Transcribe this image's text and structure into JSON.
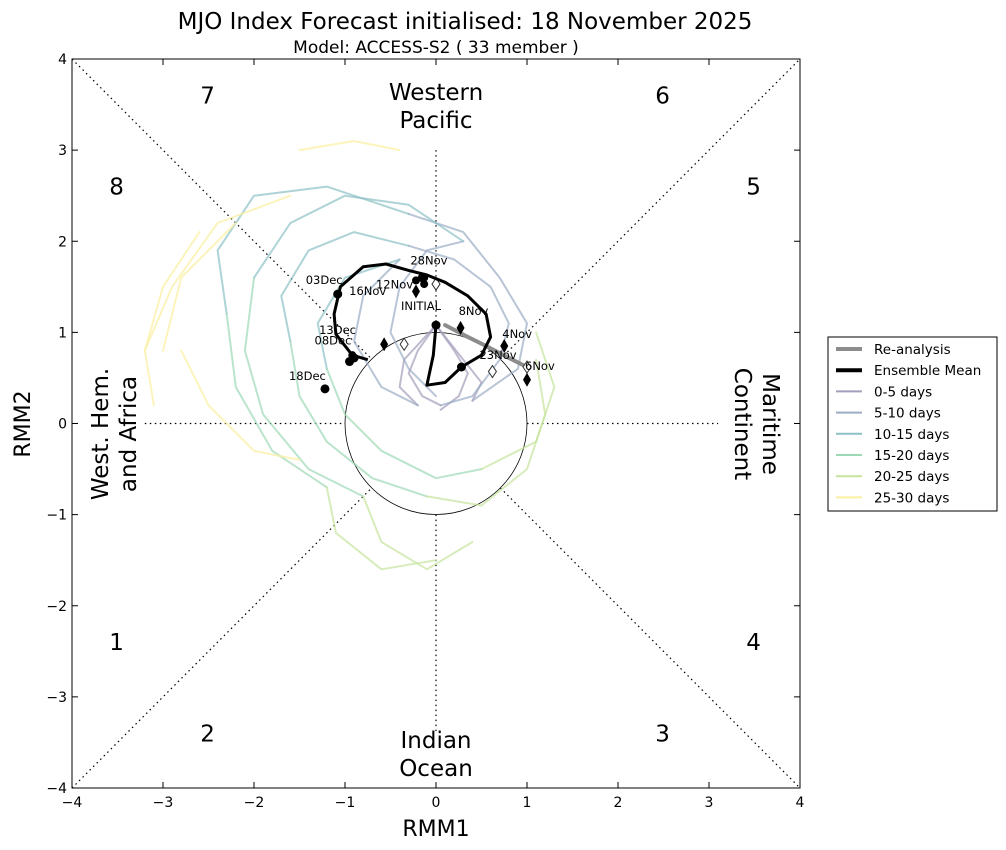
{
  "chart_data": {
    "type": "line",
    "title": "MJO Index Forecast initialised:  18  November 2025",
    "subtitle": "Model: ACCESS-S2 ( 33 member )",
    "xlabel": "RMM1",
    "ylabel": "RMM2",
    "xlim": [
      -4,
      4
    ],
    "ylim": [
      -4,
      4
    ],
    "xticks": [
      -4,
      -3,
      -2,
      -1,
      0,
      1,
      2,
      3,
      4
    ],
    "yticks": [
      -4,
      -3,
      -2,
      -1,
      0,
      1,
      2,
      3,
      4
    ],
    "xtick_labels": [
      "−4",
      "−3",
      "−2",
      "−1",
      "0",
      "1",
      "2",
      "3",
      "4"
    ],
    "ytick_labels": [
      "−4",
      "−3",
      "−2",
      "−1",
      "0",
      "1",
      "2",
      "3",
      "4"
    ],
    "unit_circle_radius": 1,
    "phase_numbers": [
      {
        "label": "1",
        "x": -3.4,
        "y": -2.4
      },
      {
        "label": "2",
        "x": -2.4,
        "y": -3.4
      },
      {
        "label": "3",
        "x": 2.6,
        "y": -3.4
      },
      {
        "label": "4",
        "x": 3.6,
        "y": -2.4
      },
      {
        "label": "5",
        "x": 3.6,
        "y": 2.6
      },
      {
        "label": "6",
        "x": 2.6,
        "y": 3.6
      },
      {
        "label": "7",
        "x": -2.4,
        "y": 3.6
      },
      {
        "label": "8",
        "x": -3.4,
        "y": 2.6
      }
    ],
    "region_labels": {
      "top": [
        "Western",
        "Pacific"
      ],
      "bottom": [
        "Indian",
        "Ocean"
      ],
      "left": [
        "West. Hem.",
        "and Africa"
      ],
      "right": [
        "Maritime",
        "Continent"
      ]
    },
    "legend": {
      "position": "outside-right",
      "entries": [
        {
          "label": "Re-analysis",
          "color": "#8c8c8c",
          "width": 4
        },
        {
          "label": "Ensemble Mean",
          "color": "#000000",
          "width": 4
        },
        {
          "label": "0-5 days",
          "color": "#a59dbb",
          "width": 2
        },
        {
          "label": "5-10 days",
          "color": "#9aadc4",
          "width": 2
        },
        {
          "label": "10-15 days",
          "color": "#8cc1c6",
          "width": 2
        },
        {
          "label": "15-20 days",
          "color": "#9ed9b6",
          "width": 2
        },
        {
          "label": "20-25 days",
          "color": "#c6e49c",
          "width": 2
        },
        {
          "label": "25-30 days",
          "color": "#fbf0a0",
          "width": 2
        }
      ]
    },
    "reanalysis": {
      "color": "#8c8c8c",
      "points": [
        {
          "x": 1.0,
          "y": 0.62
        },
        {
          "x": 0.8,
          "y": 0.72
        },
        {
          "x": 0.55,
          "y": 0.85
        },
        {
          "x": 0.35,
          "y": 0.95
        },
        {
          "x": 0.1,
          "y": 1.08
        }
      ],
      "markers": [
        {
          "x": 1.0,
          "y": 0.62,
          "label": "6Nov"
        },
        {
          "x": 0.62,
          "y": 0.57,
          "label": ""
        },
        {
          "x": -0.35,
          "y": 0.87,
          "label": ""
        },
        {
          "x": 0.0,
          "y": 1.53,
          "label": ""
        }
      ]
    },
    "ensemble_mean": {
      "color": "#000000",
      "points": [
        {
          "x": 0.0,
          "y": 1.08
        },
        {
          "x": -0.03,
          "y": 0.75
        },
        {
          "x": -0.1,
          "y": 0.42
        },
        {
          "x": 0.1,
          "y": 0.45
        },
        {
          "x": 0.28,
          "y": 0.62
        },
        {
          "x": 0.5,
          "y": 0.75
        },
        {
          "x": 0.6,
          "y": 0.95
        },
        {
          "x": 0.55,
          "y": 1.2
        },
        {
          "x": 0.35,
          "y": 1.4
        },
        {
          "x": 0.1,
          "y": 1.55
        },
        {
          "x": -0.1,
          "y": 1.63
        },
        {
          "x": -0.3,
          "y": 1.68
        },
        {
          "x": -0.55,
          "y": 1.75
        },
        {
          "x": -0.8,
          "y": 1.72
        },
        {
          "x": -1.05,
          "y": 1.5
        },
        {
          "x": -1.12,
          "y": 1.2
        },
        {
          "x": -1.1,
          "y": 0.98
        },
        {
          "x": -0.92,
          "y": 0.75
        },
        {
          "x": -0.75,
          "y": 0.7
        }
      ]
    },
    "date_markers": [
      {
        "label": "INITIAL",
        "x": 0.0,
        "y": 1.08,
        "shape": "circle"
      },
      {
        "label": "23Nov",
        "x": 0.28,
        "y": 0.62,
        "shape": "circle"
      },
      {
        "label": "28Nov",
        "x": -0.15,
        "y": 1.6,
        "shape": "circle"
      },
      {
        "label": "03Dec",
        "x": -1.08,
        "y": 1.42,
        "shape": "circle"
      },
      {
        "label": "08Dec",
        "x": -0.95,
        "y": 0.68,
        "shape": "circle"
      },
      {
        "label": "13Dec",
        "x": -0.9,
        "y": 0.72,
        "shape": "circle"
      },
      {
        "label": "18Dec",
        "x": -1.22,
        "y": 0.38,
        "shape": "circle"
      },
      {
        "label": "4Nov",
        "x": 0.75,
        "y": 0.85,
        "shape": "diamond"
      },
      {
        "label": "6Nov",
        "x": 1.0,
        "y": 0.48,
        "shape": "diamond"
      },
      {
        "label": "8Nov",
        "x": 0.27,
        "y": 1.05,
        "shape": "diamond"
      },
      {
        "label": "12Nov",
        "x": -0.22,
        "y": 1.45,
        "shape": "diamond"
      },
      {
        "label": "16Nov",
        "x": -0.57,
        "y": 0.87,
        "shape": "diamond"
      }
    ],
    "extra_mean_markers": [
      {
        "x": -0.13,
        "y": 1.6
      },
      {
        "x": -0.13,
        "y": 1.53
      },
      {
        "x": -0.22,
        "y": 1.57
      },
      {
        "x": -0.92,
        "y": 0.75
      }
    ],
    "ensemble_members": {
      "count": 33,
      "description": "33 member forecast trajectories, coloured by lead time",
      "representative_tracks": [
        {
          "band": "0-5 days",
          "points": [
            [
              0.0,
              1.08
            ],
            [
              -0.2,
              0.8
            ],
            [
              -0.3,
              0.55
            ],
            [
              -0.15,
              0.3
            ],
            [
              0.05,
              0.2
            ]
          ]
        },
        {
          "band": "0-5 days",
          "points": [
            [
              0.0,
              1.08
            ],
            [
              0.2,
              0.8
            ],
            [
              0.35,
              0.55
            ],
            [
              0.25,
              0.3
            ],
            [
              0.05,
              0.15
            ]
          ]
        },
        {
          "band": "0-5 days",
          "points": [
            [
              0.0,
              1.08
            ],
            [
              -0.35,
              0.7
            ],
            [
              -0.4,
              0.4
            ],
            [
              -0.2,
              0.2
            ]
          ]
        },
        {
          "band": "0-5 days",
          "points": [
            [
              0.0,
              1.08
            ],
            [
              0.3,
              0.7
            ],
            [
              0.5,
              0.45
            ],
            [
              0.4,
              0.25
            ]
          ]
        },
        {
          "band": "5-10 days",
          "points": [
            [
              0.05,
              0.2
            ],
            [
              0.4,
              0.3
            ],
            [
              0.7,
              0.7
            ],
            [
              0.8,
              1.1
            ],
            [
              0.6,
              1.5
            ],
            [
              0.2,
              1.8
            ],
            [
              -0.3,
              1.95
            ]
          ]
        },
        {
          "band": "5-10 days",
          "points": [
            [
              0.0,
              0.3
            ],
            [
              -0.3,
              0.6
            ],
            [
              -0.5,
              1.0
            ],
            [
              -0.4,
              1.5
            ],
            [
              -0.1,
              1.9
            ],
            [
              0.3,
              2.0
            ]
          ]
        },
        {
          "band": "5-10 days",
          "points": [
            [
              0.4,
              0.25
            ],
            [
              0.9,
              0.6
            ],
            [
              1.0,
              1.1
            ],
            [
              0.7,
              1.6
            ],
            [
              0.3,
              2.1
            ],
            [
              -0.3,
              2.3
            ]
          ]
        },
        {
          "band": "5-10 days",
          "points": [
            [
              -0.2,
              0.2
            ],
            [
              -0.6,
              0.4
            ],
            [
              -0.9,
              0.9
            ],
            [
              -0.8,
              1.4
            ],
            [
              -0.4,
              1.8
            ]
          ]
        },
        {
          "band": "10-15 days",
          "points": [
            [
              -0.3,
              1.95
            ],
            [
              -0.9,
              2.1
            ],
            [
              -1.4,
              1.9
            ],
            [
              -1.7,
              1.4
            ],
            [
              -1.6,
              0.9
            ]
          ]
        },
        {
          "band": "10-15 days",
          "points": [
            [
              0.3,
              2.0
            ],
            [
              -0.3,
              2.4
            ],
            [
              -1.0,
              2.5
            ],
            [
              -1.6,
              2.2
            ],
            [
              -2.0,
              1.6
            ]
          ]
        },
        {
          "band": "10-15 days",
          "points": [
            [
              -0.3,
              2.3
            ],
            [
              -1.2,
              2.6
            ],
            [
              -2.0,
              2.5
            ],
            [
              -2.4,
              1.9
            ],
            [
              -2.3,
              1.2
            ]
          ]
        },
        {
          "band": "10-15 days",
          "points": [
            [
              -0.4,
              1.8
            ],
            [
              -1.0,
              1.6
            ],
            [
              -1.3,
              1.1
            ],
            [
              -1.2,
              0.6
            ]
          ]
        },
        {
          "band": "15-20 days",
          "points": [
            [
              -1.6,
              0.9
            ],
            [
              -1.5,
              0.3
            ],
            [
              -1.2,
              -0.2
            ],
            [
              -0.7,
              -0.6
            ],
            [
              -0.1,
              -0.8
            ]
          ]
        },
        {
          "band": "15-20 days",
          "points": [
            [
              -2.0,
              1.6
            ],
            [
              -2.1,
              0.8
            ],
            [
              -1.9,
              0.1
            ],
            [
              -1.4,
              -0.5
            ],
            [
              -0.8,
              -0.8
            ]
          ]
        },
        {
          "band": "15-20 days",
          "points": [
            [
              -2.3,
              1.2
            ],
            [
              -2.2,
              0.4
            ],
            [
              -1.8,
              -0.3
            ],
            [
              -1.2,
              -0.7
            ]
          ]
        },
        {
          "band": "15-20 days",
          "points": [
            [
              -1.2,
              0.6
            ],
            [
              -1.0,
              0.1
            ],
            [
              -0.6,
              -0.3
            ],
            [
              0.0,
              -0.6
            ],
            [
              0.5,
              -0.5
            ]
          ]
        },
        {
          "band": "20-25 days",
          "points": [
            [
              -0.1,
              -0.8
            ],
            [
              0.5,
              -0.9
            ],
            [
              1.0,
              -0.5
            ],
            [
              1.2,
              0.1
            ],
            [
              1.1,
              0.7
            ]
          ]
        },
        {
          "band": "20-25 days",
          "points": [
            [
              -0.8,
              -0.8
            ],
            [
              -0.6,
              -1.3
            ],
            [
              -0.1,
              -1.6
            ],
            [
              0.4,
              -1.3
            ]
          ]
        },
        {
          "band": "20-25 days",
          "points": [
            [
              -1.2,
              -0.7
            ],
            [
              -1.1,
              -1.2
            ],
            [
              -0.6,
              -1.6
            ],
            [
              0.0,
              -1.5
            ]
          ]
        },
        {
          "band": "20-25 days",
          "points": [
            [
              0.5,
              -0.5
            ],
            [
              1.1,
              -0.2
            ],
            [
              1.3,
              0.4
            ],
            [
              1.1,
              1.0
            ]
          ]
        },
        {
          "band": "25-30 days",
          "points": [
            [
              -2.6,
              2.1
            ],
            [
              -3.0,
              1.5
            ],
            [
              -3.2,
              0.8
            ],
            [
              -3.1,
              0.2
            ]
          ]
        },
        {
          "band": "25-30 days",
          "points": [
            [
              -2.2,
              2.2
            ],
            [
              -2.8,
              1.6
            ],
            [
              -3.0,
              0.8
            ]
          ]
        },
        {
          "band": "25-30 days",
          "points": [
            [
              -1.6,
              2.5
            ],
            [
              -2.4,
              2.2
            ],
            [
              -2.9,
              1.5
            ],
            [
              -3.2,
              0.8
            ]
          ]
        },
        {
          "band": "25-30 days",
          "points": [
            [
              -1.5,
              -0.4
            ],
            [
              -2.0,
              -0.3
            ],
            [
              -2.5,
              0.2
            ],
            [
              -2.8,
              0.8
            ]
          ]
        },
        {
          "band": "25-30 days",
          "points": [
            [
              -0.4,
              3.0
            ],
            [
              -0.9,
              3.1
            ],
            [
              -1.5,
              3.0
            ]
          ]
        }
      ]
    },
    "member_gradient": [
      "#a59dbb",
      "#9aadc4",
      "#8cc1c6",
      "#9ed9b6",
      "#c6e49c",
      "#fbf0a0"
    ]
  }
}
